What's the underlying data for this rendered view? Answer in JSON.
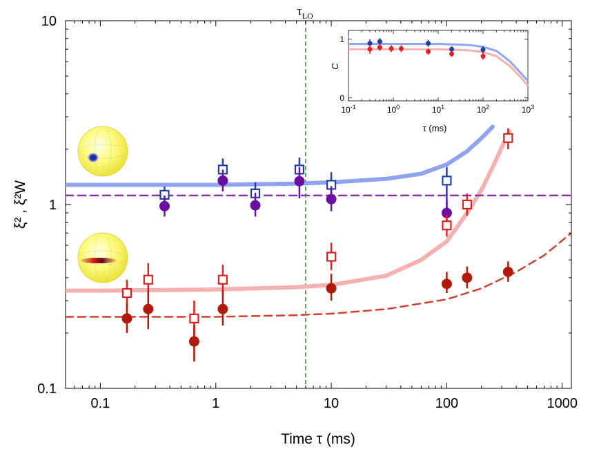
{
  "chart_data": [
    {
      "type": "scatter",
      "scale": "log-log",
      "title": "",
      "xlabel": "Time τ (ms)",
      "ylabel": "ξ² , ξ²W",
      "xlim": [
        0.05,
        1200
      ],
      "ylim": [
        0.1,
        10
      ],
      "x_ticks": [
        0.1,
        1,
        10,
        100,
        1000
      ],
      "x_tick_labels": [
        "0.1",
        "1",
        "10",
        "100",
        "1000"
      ],
      "y_ticks": [
        0.1,
        1,
        10
      ],
      "y_tick_labels": [
        "0.1",
        "1",
        "10"
      ],
      "vline": {
        "x": 6,
        "label": "τLO",
        "label_main": "τ",
        "label_sub": "LO",
        "color": "#2e8b2e"
      },
      "series": [
        {
          "name": "blue-open-squares",
          "marker": "open-square",
          "color": "#1f3fa6",
          "x": [
            0.36,
            1.15,
            2.2,
            5.3,
            10,
            100
          ],
          "y": [
            1.13,
            1.55,
            1.15,
            1.55,
            1.28,
            1.35
          ],
          "err_lo": [
            1.0,
            1.38,
            1.02,
            1.3,
            1.1,
            0.85
          ],
          "err_hi": [
            1.25,
            1.78,
            1.32,
            1.8,
            1.5,
            1.6
          ]
        },
        {
          "name": "purple-filled-circles",
          "marker": "filled-circle",
          "color": "#6a0fa0",
          "x": [
            0.36,
            1.15,
            2.2,
            5.3,
            10,
            100
          ],
          "y": [
            0.98,
            1.35,
            0.99,
            1.34,
            1.07,
            0.9
          ],
          "err_lo": [
            0.86,
            1.18,
            0.86,
            1.08,
            0.92,
            0.76
          ],
          "err_hi": [
            1.12,
            1.55,
            1.16,
            1.6,
            1.26,
            1.05
          ]
        },
        {
          "name": "red-open-squares",
          "marker": "open-square",
          "color": "#e02020",
          "x": [
            0.17,
            0.26,
            0.65,
            1.15,
            10,
            100,
            150,
            340
          ],
          "y": [
            0.33,
            0.39,
            0.24,
            0.39,
            0.52,
            0.77,
            1.0,
            2.3
          ],
          "err_lo": [
            0.27,
            0.31,
            0.19,
            0.32,
            0.44,
            0.67,
            0.87,
            2.0
          ],
          "err_hi": [
            0.39,
            0.48,
            0.3,
            0.47,
            0.62,
            0.88,
            1.15,
            2.6
          ]
        },
        {
          "name": "red-filled-circles",
          "marker": "filled-circle",
          "color": "#b01a0a",
          "x": [
            0.17,
            0.26,
            0.65,
            1.15,
            10,
            100,
            150,
            340
          ],
          "y": [
            0.24,
            0.27,
            0.18,
            0.27,
            0.35,
            0.37,
            0.4,
            0.43
          ],
          "err_lo": [
            0.2,
            0.21,
            0.14,
            0.22,
            0.3,
            0.33,
            0.35,
            0.38
          ],
          "err_hi": [
            0.29,
            0.34,
            0.22,
            0.34,
            0.42,
            0.43,
            0.46,
            0.49
          ]
        }
      ],
      "lines": [
        {
          "name": "blue-theory",
          "style": "solid",
          "color": "#8fa3f0",
          "x": [
            0.05,
            0.1,
            1,
            5,
            10,
            30,
            60,
            100,
            150,
            200,
            250
          ],
          "y": [
            1.28,
            1.28,
            1.28,
            1.3,
            1.32,
            1.38,
            1.47,
            1.65,
            1.95,
            2.3,
            2.65
          ]
        },
        {
          "name": "red-theory",
          "style": "solid",
          "color": "#f5b0b0",
          "x": [
            0.05,
            0.1,
            1,
            5,
            10,
            30,
            60,
            100,
            150,
            200,
            250,
            300,
            350
          ],
          "y": [
            0.34,
            0.34,
            0.345,
            0.355,
            0.365,
            0.41,
            0.5,
            0.63,
            0.9,
            1.2,
            1.6,
            2.05,
            2.5
          ]
        },
        {
          "name": "purple-dashed",
          "style": "dashed",
          "color": "#8a2ea6",
          "x": [
            0.05,
            1200
          ],
          "y": [
            1.12,
            1.12
          ]
        },
        {
          "name": "red-dashed",
          "style": "dashed",
          "color": "#d04030",
          "x": [
            0.05,
            1,
            5,
            10,
            30,
            100,
            200,
            400,
            700,
            1200
          ],
          "y": [
            0.245,
            0.245,
            0.25,
            0.255,
            0.27,
            0.305,
            0.35,
            0.43,
            0.53,
            0.7
          ]
        }
      ]
    },
    {
      "type": "scatter",
      "role": "inset",
      "scale": "log-linear",
      "xlabel": "τ (ms)",
      "ylabel": "C",
      "xlim": [
        0.1,
        1000
      ],
      "ylim": [
        -0.05,
        1.15
      ],
      "x_ticks": [
        0.1,
        1,
        10,
        100,
        1000
      ],
      "x_tick_labels": [
        {
          "base": "10",
          "exp": "-1"
        },
        {
          "base": "10",
          "exp": "0"
        },
        {
          "base": "10",
          "exp": "1"
        },
        {
          "base": "10",
          "exp": "2"
        },
        {
          "base": "10",
          "exp": "3"
        }
      ],
      "y_ticks": [
        0,
        1
      ],
      "y_tick_labels": [
        "0",
        "1"
      ],
      "series": [
        {
          "name": "inset-blue",
          "marker": "filled-circle",
          "color": "#1f3fa6",
          "x": [
            0.3,
            0.5,
            6,
            20,
            100
          ],
          "y": [
            0.93,
            0.96,
            0.93,
            0.83,
            0.82
          ],
          "err": [
            0.07,
            0.06,
            0.06,
            0.05,
            0.06
          ]
        },
        {
          "name": "inset-red",
          "marker": "filled-circle",
          "color": "#e02020",
          "x": [
            0.3,
            0.5,
            0.9,
            1.5,
            6,
            20,
            100
          ],
          "y": [
            0.83,
            0.86,
            0.84,
            0.84,
            0.79,
            0.75,
            0.71
          ],
          "err": [
            0.08,
            0.06,
            0.06,
            0.06,
            0.05,
            0.05,
            0.06
          ]
        }
      ],
      "lines": [
        {
          "name": "inset-blue-curve",
          "color": "#8fa3f0",
          "x": [
            0.1,
            1,
            10,
            50,
            100,
            200,
            400,
            700,
            1000
          ],
          "y": [
            0.92,
            0.92,
            0.92,
            0.9,
            0.87,
            0.8,
            0.62,
            0.42,
            0.29
          ]
        },
        {
          "name": "inset-red-curve",
          "color": "#f5b0b0",
          "x": [
            0.1,
            1,
            10,
            50,
            100,
            200,
            400,
            700,
            1000
          ],
          "y": [
            0.83,
            0.83,
            0.83,
            0.81,
            0.78,
            0.71,
            0.54,
            0.35,
            0.21
          ]
        }
      ]
    }
  ]
}
